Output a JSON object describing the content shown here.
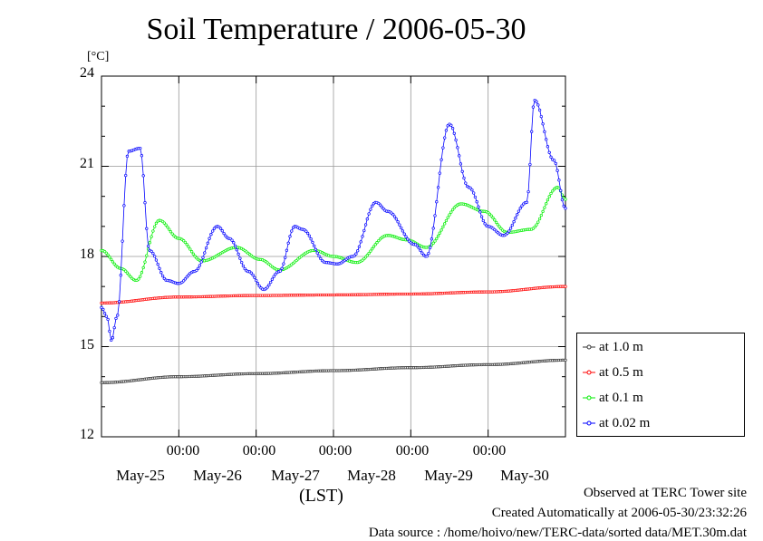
{
  "chart_data": {
    "type": "line",
    "title": "Soil Temperature / 2006-05-30",
    "ylabel": "[°C]",
    "xlabel": "(LST)",
    "ylim": [
      12,
      24
    ],
    "yticks": [
      "12",
      "15",
      "18",
      "21",
      "24"
    ],
    "x_time_ticks": [
      "00:00",
      "00:00",
      "00:00",
      "00:00",
      "00:00"
    ],
    "x_day_labels": [
      "May-25",
      "May-26",
      "May-27",
      "May-28",
      "May-29",
      "May-30"
    ],
    "grid": true,
    "legend_position": "right",
    "series": [
      {
        "name": "at 1.0 m",
        "color": "#333333",
        "x": [
          0,
          1,
          2,
          3,
          4,
          5,
          6
        ],
        "values": [
          13.8,
          14.0,
          14.1,
          14.2,
          14.3,
          14.4,
          14.55
        ]
      },
      {
        "name": "at 0.5 m",
        "color": "#ff0000",
        "x": [
          0,
          1,
          2,
          3,
          4,
          5,
          6
        ],
        "values": [
          16.45,
          16.65,
          16.7,
          16.72,
          16.75,
          16.82,
          17.0
        ]
      },
      {
        "name": "at 0.1 m",
        "color": "#00ee00",
        "x": [
          0.0,
          0.25,
          0.45,
          0.75,
          1.0,
          1.3,
          1.75,
          2.05,
          2.3,
          2.75,
          3.0,
          3.3,
          3.7,
          3.95,
          4.2,
          4.65,
          4.95,
          5.25,
          5.55,
          5.9,
          6.0
        ],
        "values": [
          18.2,
          17.6,
          17.2,
          19.2,
          18.6,
          17.85,
          18.3,
          17.9,
          17.55,
          18.2,
          18.0,
          17.8,
          18.7,
          18.55,
          18.3,
          19.75,
          19.5,
          18.8,
          18.9,
          20.3,
          19.9
        ]
      },
      {
        "name": "at 0.02 m",
        "color": "#0000ff",
        "x": [
          0.0,
          0.07,
          0.13,
          0.2,
          0.35,
          0.5,
          0.62,
          0.85,
          1.0,
          1.2,
          1.5,
          1.65,
          1.9,
          2.1,
          2.3,
          2.5,
          2.6,
          2.9,
          3.05,
          3.25,
          3.55,
          3.7,
          4.05,
          4.2,
          4.5,
          4.75,
          5.0,
          5.2,
          5.5,
          5.6,
          5.85,
          6.0
        ],
        "values": [
          16.3,
          16.0,
          15.2,
          16.0,
          21.5,
          21.6,
          18.2,
          17.2,
          17.1,
          17.5,
          19.0,
          18.6,
          17.5,
          16.9,
          17.5,
          19.0,
          18.9,
          17.8,
          17.75,
          18.0,
          19.8,
          19.5,
          18.4,
          18.0,
          22.4,
          20.3,
          19.0,
          18.7,
          19.8,
          23.2,
          21.2,
          19.6
        ]
      }
    ]
  },
  "footer": {
    "line1": "Observed at TERC Tower site",
    "line2": "Created Automatically at 2006-05-30/23:32:26",
    "line3": "Data source : /home/hoivo/new/TERC-data/sorted  data/MET.30m.dat"
  }
}
